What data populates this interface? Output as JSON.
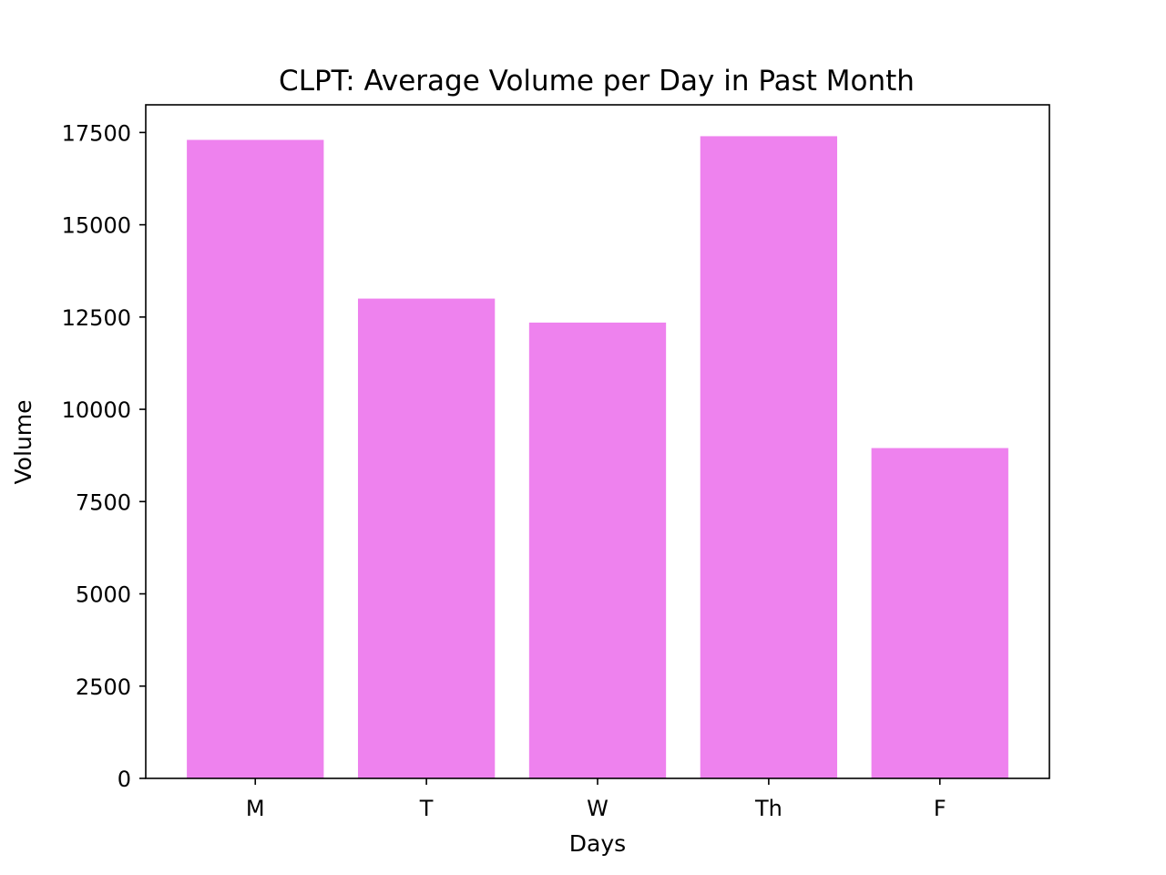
{
  "chart_data": {
    "type": "bar",
    "title": "CLPT: Average Volume per Day in Past Month",
    "xlabel": "Days",
    "ylabel": "Volume",
    "categories": [
      "M",
      "T",
      "W",
      "Th",
      "F"
    ],
    "values": [
      17300,
      13000,
      12350,
      17400,
      8950
    ],
    "ylim": [
      0,
      18250
    ],
    "yticks": [
      0,
      2500,
      5000,
      7500,
      10000,
      12500,
      15000,
      17500
    ],
    "ytick_labels": [
      "0",
      "2500",
      "5000",
      "7500",
      "10000",
      "12500",
      "15000",
      "17500"
    ],
    "bar_color": "#ee82ee",
    "grid": false,
    "legend": "none"
  }
}
